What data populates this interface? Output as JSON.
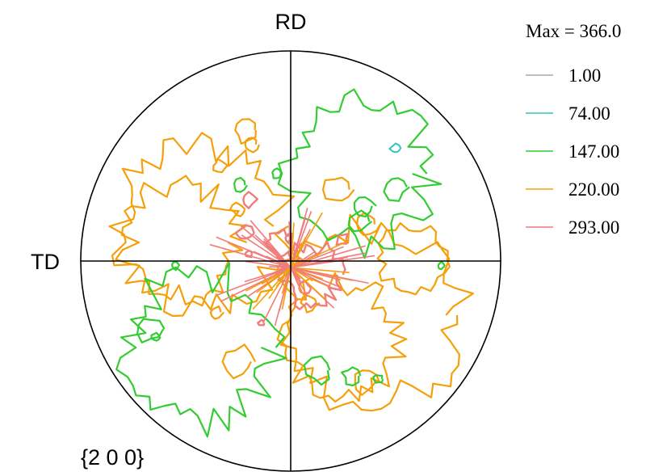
{
  "chart_data": {
    "type": "contour",
    "subtype": "pole figure",
    "labels": {
      "top": "RD",
      "left": "TD",
      "plane": "{2 0 0}"
    },
    "legend": {
      "title": "Max = 366.0",
      "placement": "top-right",
      "entries": [
        {
          "label": "1.00",
          "level": 1.0,
          "color": "#a8a8a8"
        },
        {
          "label": "74.00",
          "level": 74.0,
          "color": "#2fc4c4"
        },
        {
          "label": "147.00",
          "level": 147.0,
          "color": "#33cc33"
        },
        {
          "label": "220.00",
          "level": 220.0,
          "color": "#f5a00a"
        },
        {
          "label": "293.00",
          "level": 293.0,
          "color": "#f07c7c"
        }
      ]
    },
    "max": 366.0,
    "levels": [
      1.0,
      74.0,
      147.0,
      220.0,
      293.0
    ],
    "grid": false
  }
}
